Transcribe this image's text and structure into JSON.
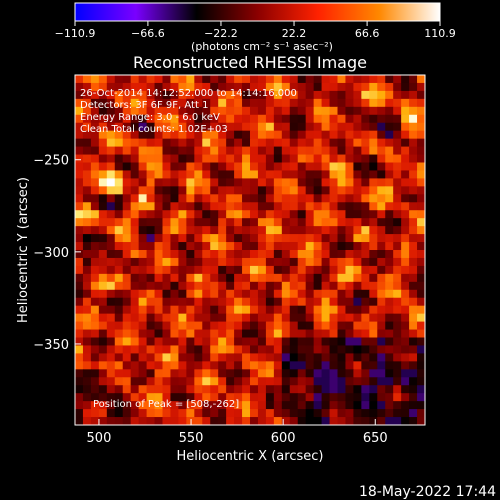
{
  "chart_data": {
    "type": "heatmap",
    "title": "Reconstructed RHESSI Image",
    "xlabel": "Heliocentric X (arcsec)",
    "ylabel": "Heliocentric Y (arcsec)",
    "xlim": [
      487,
      677
    ],
    "ylim": [
      -394,
      -204
    ],
    "x_ticks": [
      500,
      550,
      600,
      650
    ],
    "y_ticks": [
      -250,
      -300,
      -350
    ],
    "x_tick_labels": [
      "500",
      "550",
      "600",
      "650"
    ],
    "y_tick_labels": [
      "−250",
      "−300",
      "−350"
    ],
    "colorbar": {
      "range": [
        -110.9,
        110.9
      ],
      "ticks": [
        "−110.9",
        "−66.6",
        "−22.2",
        "22.2",
        "66.6",
        "110.9"
      ],
      "tick_values": [
        -110.9,
        -66.6,
        -22.2,
        22.2,
        66.6,
        110.9
      ],
      "units": "(photons cm⁻² s⁻¹ asec⁻²)",
      "colors": [
        "#0000ff",
        "#7a00ff",
        "#000000",
        "#8b0000",
        "#ff2200",
        "#ff8800",
        "#ffffff"
      ]
    },
    "annotations": [
      "26-Oct-2014 14:12:52.000 to 14:14:16.000",
      "Detectors: 3F 6F 9F, Att 1",
      "Energy Range: 3.0 - 6.0 keV",
      "Clean     Total counts: 1.02E+03"
    ],
    "peak_label": "Position of Peak = [508,-262]",
    "peak": [
      508,
      -262
    ],
    "grid": false
  },
  "footer": {
    "timestamp": "18-May-2022 17:44"
  }
}
